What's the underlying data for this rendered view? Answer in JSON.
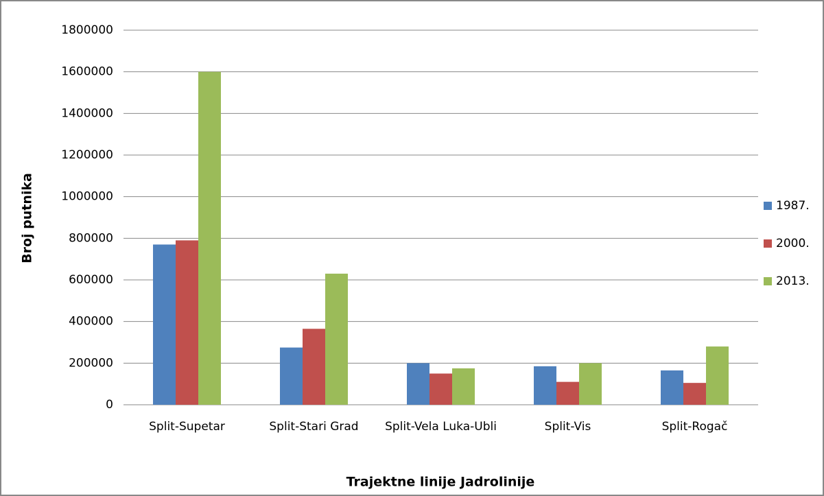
{
  "chart_data": {
    "type": "bar",
    "x_label": "Trajektne linije Jadrolinije",
    "y_label": "Broj putnika",
    "categories": [
      "Split-Supetar",
      "Split-Stari Grad",
      "Split-Vela Luka-Ubli",
      "Split-Vis",
      "Split-Rogač"
    ],
    "series": [
      {
        "name": "1987.",
        "color": "#4f81bd",
        "values": [
          770000,
          275000,
          200000,
          185000,
          165000
        ]
      },
      {
        "name": "2000.",
        "color": "#c0504d",
        "values": [
          790000,
          365000,
          150000,
          110000,
          105000
        ]
      },
      {
        "name": "2013.",
        "color": "#9bbb59",
        "values": [
          1600000,
          630000,
          175000,
          200000,
          280000
        ]
      }
    ],
    "ylim": [
      0,
      1800000
    ],
    "yticks": [
      0,
      200000,
      400000,
      600000,
      800000,
      1000000,
      1200000,
      1400000,
      1600000,
      1800000
    ],
    "grid": true,
    "legend": "right"
  }
}
